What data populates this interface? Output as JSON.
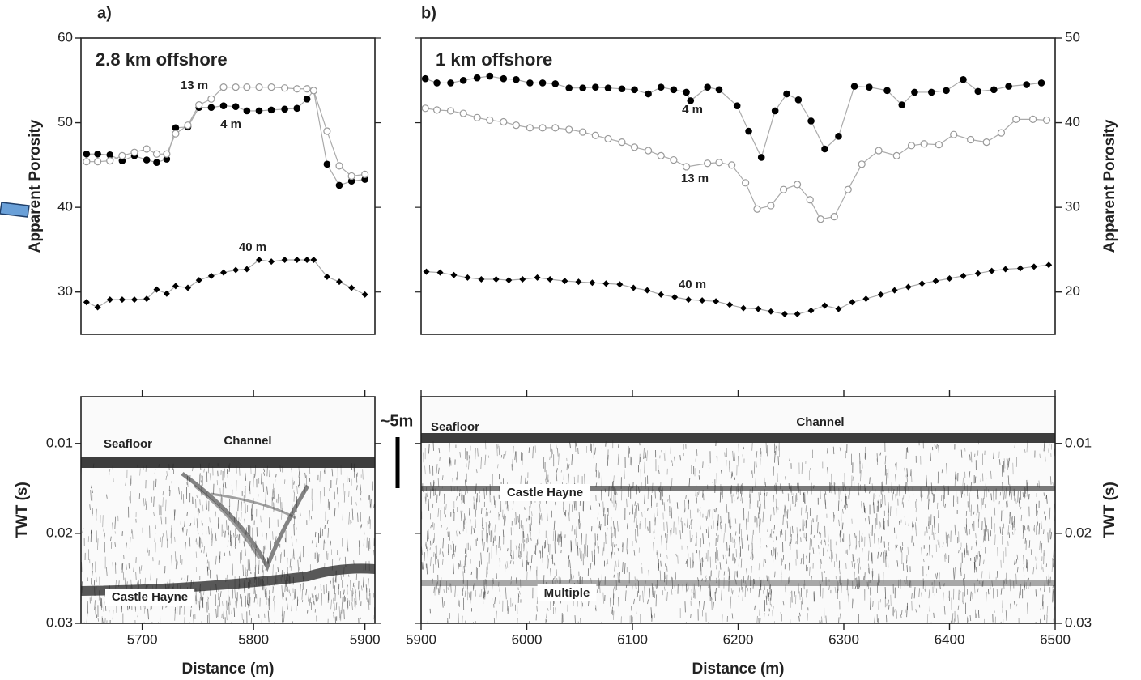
{
  "scale_bar": "~5m",
  "chart_data": [
    {
      "type": "line",
      "panel_label": "a)",
      "title": "2.8 km offshore",
      "ylabel": "Apparent Porosity",
      "y_axis_side": "left",
      "xlim": [
        5645,
        5909
      ],
      "ylim": [
        25,
        60
      ],
      "yticks": [
        30,
        40,
        50,
        60
      ],
      "series": [
        {
          "name": "4 m",
          "color": "#000000",
          "marker": "filled-circle",
          "x": [
            5650,
            5660,
            5671,
            5682,
            5693,
            5704,
            5713,
            5722,
            5730,
            5741,
            5751,
            5762,
            5773,
            5784,
            5794,
            5805,
            5816,
            5828,
            5839,
            5848,
            5854,
            5866,
            5877,
            5888,
            5900
          ],
          "values": [
            46.3,
            46.3,
            46.2,
            45.5,
            46.1,
            45.6,
            45.3,
            45.7,
            49.4,
            49.5,
            51.8,
            51.8,
            52.0,
            51.9,
            51.4,
            51.4,
            51.5,
            51.6,
            51.7,
            52.8,
            53.8,
            45.1,
            42.6,
            43.1,
            43.3
          ]
        },
        {
          "name": "13 m",
          "color": "#999999",
          "marker": "open-circle",
          "x": [
            5650,
            5660,
            5671,
            5682,
            5693,
            5704,
            5713,
            5722,
            5730,
            5741,
            5751,
            5762,
            5773,
            5784,
            5794,
            5805,
            5816,
            5828,
            5839,
            5848,
            5854,
            5866,
            5877,
            5888,
            5900
          ],
          "values": [
            45.4,
            45.4,
            45.5,
            46.1,
            46.5,
            46.9,
            46.3,
            46.3,
            48.7,
            49.7,
            52.1,
            52.8,
            54.2,
            54.2,
            54.2,
            54.2,
            54.2,
            54.1,
            54.0,
            54.0,
            53.8,
            49.0,
            44.9,
            43.7,
            43.9
          ]
        },
        {
          "name": "40 m",
          "color": "#000000",
          "marker": "diamond",
          "x": [
            5650,
            5660,
            5671,
            5682,
            5693,
            5704,
            5713,
            5722,
            5730,
            5741,
            5751,
            5762,
            5773,
            5784,
            5794,
            5805,
            5816,
            5828,
            5839,
            5848,
            5854,
            5866,
            5877,
            5888,
            5900
          ],
          "values": [
            28.8,
            28.2,
            29.1,
            29.1,
            29.1,
            29.2,
            30.3,
            29.8,
            30.7,
            30.5,
            31.4,
            31.9,
            32.3,
            32.6,
            32.7,
            33.8,
            33.6,
            33.8,
            33.8,
            33.8,
            33.8,
            31.8,
            31.2,
            30.5,
            29.7
          ]
        }
      ]
    },
    {
      "type": "line",
      "panel_label": "b)",
      "title": "1 km offshore",
      "ylabel": "Apparent Porosity",
      "y_axis_side": "right",
      "xlim": [
        5900,
        6500
      ],
      "ylim": [
        15,
        50
      ],
      "yticks": [
        20,
        30,
        40,
        50
      ],
      "series": [
        {
          "name": "4 m",
          "color": "#000000",
          "marker": "filled-circle",
          "x": [
            5904,
            5915,
            5928,
            5940,
            5953,
            5965,
            5978,
            5990,
            6003,
            6015,
            6027,
            6040,
            6053,
            6065,
            6077,
            6090,
            6102,
            6115,
            6127,
            6139,
            6151,
            6155,
            6171,
            6182,
            6199,
            6210,
            6222,
            6235,
            6246,
            6257,
            6269,
            6282,
            6295,
            6310,
            6324,
            6341,
            6355,
            6367,
            6383,
            6397,
            6413,
            6427,
            6442,
            6456,
            6473,
            6487
          ],
          "values": [
            45.2,
            44.7,
            44.7,
            45.0,
            45.3,
            45.5,
            45.2,
            45.1,
            44.7,
            44.7,
            44.6,
            44.1,
            44.1,
            44.2,
            44.1,
            44.0,
            43.9,
            43.4,
            44.2,
            43.9,
            43.6,
            42.6,
            44.2,
            43.9,
            42.0,
            39.0,
            35.9,
            41.4,
            43.4,
            42.7,
            40.2,
            36.9,
            38.4,
            44.3,
            44.2,
            43.8,
            42.1,
            43.6,
            43.6,
            43.8,
            45.1,
            43.7,
            43.9,
            44.3,
            44.5,
            44.7
          ]
        },
        {
          "name": "13 m",
          "color": "#999999",
          "marker": "open-circle",
          "x": [
            5904,
            5915,
            5928,
            5940,
            5953,
            5965,
            5978,
            5990,
            6003,
            6015,
            6027,
            6040,
            6053,
            6065,
            6077,
            6090,
            6102,
            6115,
            6127,
            6139,
            6151,
            6171,
            6182,
            6194,
            6207,
            6218,
            6231,
            6243,
            6256,
            6268,
            6278,
            6291,
            6304,
            6317,
            6333,
            6350,
            6364,
            6376,
            6390,
            6404,
            6420,
            6435,
            6449,
            6463,
            6479,
            6492
          ],
          "values": [
            41.7,
            41.5,
            41.4,
            41.1,
            40.6,
            40.3,
            40.1,
            39.7,
            39.4,
            39.4,
            39.4,
            39.2,
            38.9,
            38.5,
            38.1,
            37.7,
            37.1,
            36.7,
            36.1,
            35.6,
            34.8,
            35.2,
            35.3,
            35.0,
            32.9,
            29.8,
            30.2,
            32.1,
            32.7,
            30.9,
            28.6,
            28.9,
            32.1,
            35.1,
            36.7,
            36.1,
            37.3,
            37.5,
            37.4,
            38.6,
            38.0,
            37.7,
            38.8,
            40.4,
            40.4,
            40.3
          ]
        },
        {
          "name": "40 m",
          "color": "#000000",
          "marker": "diamond",
          "x": [
            5905,
            5918,
            5931,
            5944,
            5957,
            5971,
            5983,
            5996,
            6010,
            6022,
            6036,
            6049,
            6062,
            6075,
            6088,
            6101,
            6114,
            6127,
            6140,
            6153,
            6166,
            6179,
            6192,
            6205,
            6219,
            6231,
            6244,
            6256,
            6269,
            6282,
            6295,
            6308,
            6321,
            6335,
            6348,
            6361,
            6374,
            6387,
            6400,
            6413,
            6427,
            6440,
            6453,
            6467,
            6480,
            6494
          ],
          "values": [
            22.4,
            22.3,
            22.0,
            21.7,
            21.5,
            21.5,
            21.4,
            21.5,
            21.7,
            21.5,
            21.3,
            21.2,
            21.1,
            21.0,
            20.9,
            20.5,
            20.2,
            19.7,
            19.4,
            19.1,
            19.0,
            18.9,
            18.5,
            18.1,
            18.0,
            17.7,
            17.4,
            17.4,
            17.8,
            18.4,
            18.0,
            18.8,
            19.2,
            19.7,
            20.2,
            20.6,
            21.0,
            21.3,
            21.6,
            21.9,
            22.2,
            22.5,
            22.7,
            22.8,
            23.0,
            23.2
          ]
        }
      ]
    },
    {
      "type": "image",
      "xlabel": "Distance (m)",
      "ylabel": "TWT (s)",
      "y_axis_side": "left",
      "xlim": [
        5645,
        5909
      ],
      "xticks": [
        5700,
        5800,
        5900
      ],
      "ylim": [
        0.03,
        0.0048
      ],
      "yticks": [
        0.01,
        0.02,
        0.03
      ],
      "annotations": [
        "Seafloor",
        "Channel",
        "Castle Hayne"
      ]
    },
    {
      "type": "image",
      "xlabel": "Distance (m)",
      "ylabel": "TWT (s)",
      "y_axis_side": "right",
      "xlim": [
        5900,
        6500
      ],
      "xticks": [
        5900,
        6000,
        6100,
        6200,
        6300,
        6400,
        6500
      ],
      "ylim": [
        0.03,
        0.0048
      ],
      "yticks": [
        0.01,
        0.02,
        0.03
      ],
      "annotations": [
        "Seafloor",
        "Channel",
        "Castle Hayne",
        "Multiple"
      ]
    }
  ]
}
